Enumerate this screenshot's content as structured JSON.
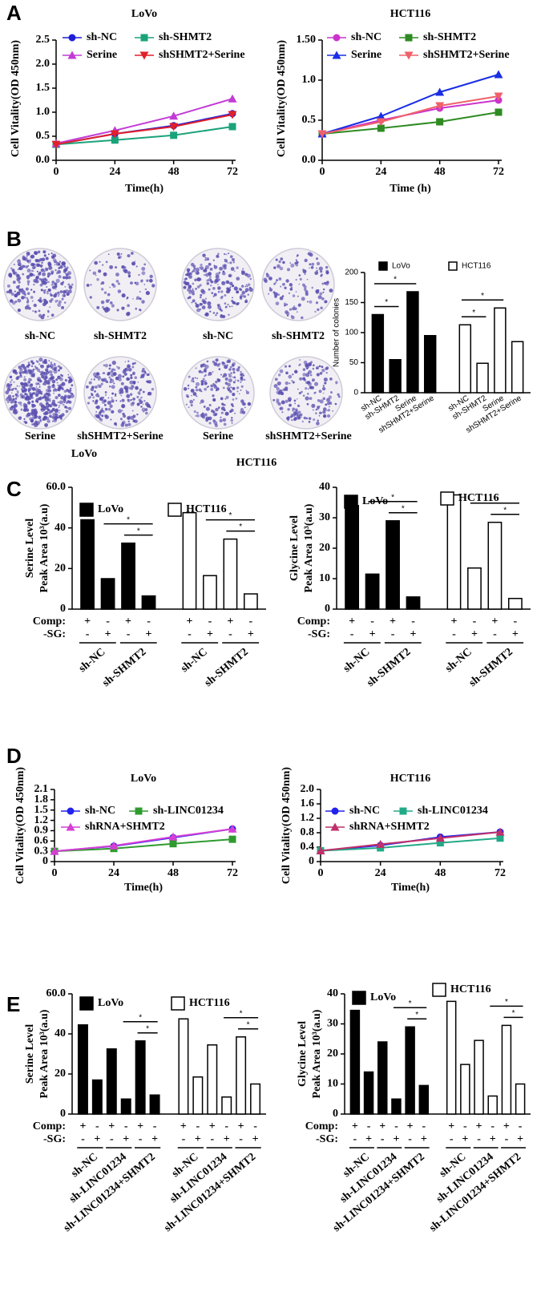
{
  "figure": {
    "panels": [
      "A",
      "B",
      "C",
      "D",
      "E"
    ]
  },
  "colony_panels": [
    {
      "group": "LoVo",
      "labels": [
        "sh-NC",
        "sh-SHMT2",
        "Serine",
        "shSHMT2+Serine"
      ]
    },
    {
      "group": "HCT116",
      "labels": [
        "sh-NC",
        "sh-SHMT2",
        "Serine",
        "shSHMT2+Serine"
      ]
    }
  ],
  "chart_data": [
    {
      "type": "line",
      "title": "LoVo",
      "xlabel": "Time(h)",
      "ylabel": "Cell Vitality(OD 450nm)",
      "x": [
        0,
        24,
        48,
        72
      ],
      "xlim": [
        0,
        72
      ],
      "xticks": [
        0,
        24,
        48,
        72
      ],
      "ylim": [
        0,
        2.5
      ],
      "yticks": [
        {
          "value": 0,
          "label": "0.0"
        },
        0.5,
        {
          "value": 1,
          "label": "1.0"
        },
        1.5,
        {
          "value": 2,
          "label": "2.0"
        },
        2.5
      ],
      "series": [
        {
          "name": "sh-NC",
          "color": "#1f1fd6",
          "marker": "circle",
          "values": [
            0.33,
            0.55,
            0.72,
            0.97
          ]
        },
        {
          "name": "sh-SHMT2",
          "color": "#1aa37a",
          "marker": "square",
          "values": [
            0.33,
            0.42,
            0.52,
            0.7
          ]
        },
        {
          "name": "Serine",
          "color": "#c23bd6",
          "marker": "triangle",
          "values": [
            0.35,
            0.62,
            0.92,
            1.28
          ]
        },
        {
          "name": "shSHMT2+Serine",
          "color": "#e0202a",
          "marker": "triangle-down",
          "values": [
            0.33,
            0.55,
            0.7,
            0.95
          ]
        }
      ]
    },
    {
      "type": "line",
      "title": "HCT116",
      "xlabel": "Time (h)",
      "ylabel": "Cell Vitality(OD 450nm)",
      "x": [
        0,
        24,
        48,
        72
      ],
      "xlim": [
        0,
        72
      ],
      "xticks": [
        0,
        24,
        48,
        72
      ],
      "ylim": [
        0,
        1.5
      ],
      "yticks": [
        {
          "value": 0,
          "label": "0.0"
        },
        0.5,
        {
          "value": 1,
          "label": "1.0"
        },
        {
          "value": 1.5,
          "label": "1.50"
        }
      ],
      "series": [
        {
          "name": "sh-NC",
          "color": "#cc33cc",
          "marker": "circle",
          "values": [
            0.33,
            0.5,
            0.65,
            0.75
          ]
        },
        {
          "name": "sh-SHMT2",
          "color": "#2e8b22",
          "marker": "square",
          "values": [
            0.33,
            0.4,
            0.48,
            0.6
          ]
        },
        {
          "name": "Serine",
          "color": "#1a2ee6",
          "marker": "triangle",
          "values": [
            0.33,
            0.55,
            0.85,
            1.07
          ]
        },
        {
          "name": "shSHMT2+Serine",
          "color": "#f0606a",
          "marker": "triangle-down",
          "values": [
            0.33,
            0.48,
            0.68,
            0.8
          ]
        }
      ]
    },
    {
      "type": "bar",
      "ylabel": "Number of colonies",
      "ylim": [
        0,
        200
      ],
      "yticks": [
        0,
        50,
        100,
        150,
        200
      ],
      "categories": [
        "sh-NC",
        "sh-SHMT2",
        "Serine",
        "shSHMT2+Serine",
        "sh-NC",
        "sh-SHMT2",
        "Serine",
        "shSHMT2+Serine"
      ],
      "series": [
        {
          "name": "LoVo",
          "color": "#000000",
          "values": [
            130,
            55,
            168,
            95,
            null,
            null,
            null,
            null
          ]
        },
        {
          "name": "HCT116",
          "color": "#ffffff",
          "values": [
            null,
            null,
            null,
            null,
            113,
            49,
            141,
            85
          ]
        }
      ],
      "significance": [
        {
          "bars": [
            0,
            1
          ],
          "label": "*"
        },
        {
          "bars": [
            0,
            2
          ],
          "label": "*"
        },
        {
          "bars": [
            4,
            5
          ],
          "label": "*"
        },
        {
          "bars": [
            4,
            6
          ],
          "label": "*"
        }
      ]
    },
    {
      "type": "bar",
      "ylabel": [
        "Serine Level",
        "Peak Area 10³(a.u)"
      ],
      "ylim": [
        0,
        60
      ],
      "yticks": [
        0,
        20,
        40,
        {
          "value": 60,
          "label": "60.0"
        }
      ],
      "rows": [
        {
          "label": "Comp:",
          "values": [
            "+",
            "-",
            "+",
            "-",
            "+",
            "-",
            "+",
            "-"
          ]
        },
        {
          "label": "-SG:",
          "values": [
            "-",
            "+",
            "-",
            "+",
            "-",
            "+",
            "-",
            "+"
          ]
        }
      ],
      "groups": [
        "sh-NC",
        "sh-SHMT2",
        "sh-NC",
        "sh-SHMT2"
      ],
      "series": [
        {
          "name": "LoVo",
          "color": "#000000",
          "values": [
            44,
            15,
            32.5,
            6.5,
            null,
            null,
            null,
            null
          ]
        },
        {
          "name": "HCT116",
          "color": "#ffffff",
          "values": [
            null,
            null,
            null,
            null,
            47.5,
            16.5,
            34.5,
            7.5
          ]
        }
      ],
      "significance": [
        {
          "bars": [
            2,
            3
          ],
          "label": "*"
        },
        {
          "bars": [
            1,
            3
          ],
          "label": "*"
        },
        {
          "bars": [
            6,
            7
          ],
          "label": "*"
        },
        {
          "bars": [
            5,
            7
          ],
          "label": "*"
        }
      ]
    },
    {
      "type": "bar",
      "ylabel": [
        "Glycine Level",
        "Peak Area 10³(a.u)"
      ],
      "ylim": [
        0,
        40
      ],
      "yticks": [
        0,
        10,
        20,
        30,
        40
      ],
      "rows": [
        {
          "label": "Comp:",
          "values": [
            "+",
            "-",
            "+",
            "-",
            "+",
            "-",
            "+",
            "-"
          ]
        },
        {
          "label": "-SG:",
          "values": [
            "-",
            "+",
            "-",
            "+",
            "-",
            "+",
            "-",
            "+"
          ]
        }
      ],
      "groups": [
        "sh-NC",
        "sh-SHMT2",
        "sh-NC",
        "sh-SHMT2"
      ],
      "series": [
        {
          "name": "LoVo",
          "color": "#000000",
          "values": [
            34,
            11.5,
            29,
            4,
            null,
            null,
            null,
            null
          ]
        },
        {
          "name": "HCT116",
          "color": "#ffffff",
          "values": [
            null,
            null,
            null,
            null,
            37.5,
            13.5,
            28.5,
            3.5
          ]
        }
      ],
      "significance": [
        {
          "bars": [
            2,
            3
          ],
          "label": "*"
        },
        {
          "bars": [
            1,
            3
          ],
          "label": "*"
        },
        {
          "bars": [
            6,
            7
          ],
          "label": "*"
        },
        {
          "bars": [
            5,
            7
          ],
          "label": "*"
        }
      ]
    },
    {
      "type": "line",
      "title": "LoVo",
      "xlabel": "Time(h)",
      "ylabel": "Cell Vitality(OD 450nm)",
      "x": [
        0,
        24,
        48,
        72
      ],
      "xlim": [
        0,
        72
      ],
      "xticks": [
        0,
        24,
        48,
        72
      ],
      "ylim": [
        0,
        2.1
      ],
      "yticks": [
        0,
        0.3,
        0.6,
        0.9,
        1.2,
        1.5,
        1.8,
        2.1
      ],
      "series": [
        {
          "name": "sh-NC",
          "color": "#2222ee",
          "marker": "circle",
          "values": [
            0.3,
            0.45,
            0.7,
            0.95
          ]
        },
        {
          "name": "sh-LINC01234",
          "color": "#2f9b2f",
          "marker": "square",
          "values": [
            0.3,
            0.38,
            0.52,
            0.65
          ]
        },
        {
          "name": "shRNA+SHMT2",
          "color": "#d63fd6",
          "marker": "triangle",
          "values": [
            0.3,
            0.46,
            0.72,
            0.95
          ]
        }
      ]
    },
    {
      "type": "line",
      "title": "HCT116",
      "xlabel": "Time(h)",
      "ylabel": "Cell Vitality(OD 450nm)",
      "x": [
        0,
        24,
        48,
        72
      ],
      "xlim": [
        0,
        72
      ],
      "xticks": [
        0,
        24,
        48,
        72
      ],
      "ylim": [
        0,
        2
      ],
      "yticks": [
        0,
        0.4,
        0.8,
        1.2,
        1.6,
        {
          "value": 2,
          "label": "2.0"
        }
      ],
      "series": [
        {
          "name": "sh-NC",
          "color": "#2222ee",
          "marker": "circle",
          "values": [
            0.3,
            0.45,
            0.68,
            0.82
          ]
        },
        {
          "name": "sh-LINC01234",
          "color": "#22aa88",
          "marker": "square",
          "values": [
            0.3,
            0.38,
            0.52,
            0.65
          ]
        },
        {
          "name": "shRNA+SHMT2",
          "color": "#c0306a",
          "marker": "triangle",
          "values": [
            0.3,
            0.48,
            0.65,
            0.82
          ]
        }
      ]
    },
    {
      "type": "bar",
      "ylabel": [
        "Serine Level",
        "Peak Area 10³(a.u)"
      ],
      "ylim": [
        0,
        60
      ],
      "yticks": [
        0,
        20,
        40,
        {
          "value": 60,
          "label": "60.0"
        }
      ],
      "rows": [
        {
          "label": "Comp:",
          "values": [
            "+",
            "-",
            "+",
            "-",
            "+",
            "-",
            "+",
            "-",
            "+",
            "-",
            "+",
            "-"
          ]
        },
        {
          "label": "-SG:",
          "values": [
            "-",
            "+",
            "-",
            "+",
            "-",
            "+",
            "-",
            "+",
            "-",
            "+",
            "-",
            "+"
          ]
        }
      ],
      "groups": [
        "sh-NC",
        "sh-LINC01234",
        "sh-LINC01234+SHMT2",
        "sh-NC",
        "sh-LINC01234",
        "sh-LINC01234+SHMT2"
      ],
      "series": [
        {
          "name": "LoVo",
          "color": "#000000",
          "values": [
            44.5,
            17,
            32.5,
            7.5,
            36.5,
            9.5,
            null,
            null,
            null,
            null,
            null,
            null
          ]
        },
        {
          "name": "HCT116",
          "color": "#ffffff",
          "values": [
            null,
            null,
            null,
            null,
            null,
            null,
            47.5,
            18.5,
            34.5,
            8.5,
            38.5,
            15
          ]
        }
      ],
      "significance": [
        {
          "bars": [
            4,
            5
          ],
          "label": "*"
        },
        {
          "bars": [
            3,
            5
          ],
          "label": "*"
        },
        {
          "bars": [
            10,
            11
          ],
          "label": "*"
        },
        {
          "bars": [
            9,
            11
          ],
          "label": "*"
        }
      ]
    },
    {
      "type": "bar",
      "ylabel": [
        "Glycine Level",
        "Peak Area 10³(a.u)"
      ],
      "ylim": [
        0,
        40
      ],
      "yticks": [
        0,
        10,
        20,
        30,
        40
      ],
      "rows": [
        {
          "label": "Comp:",
          "values": [
            "+",
            "-",
            "+",
            "-",
            "+",
            "-",
            "+",
            "-",
            "+",
            "-",
            "+",
            "-"
          ]
        },
        {
          "label": "-SG:",
          "values": [
            "-",
            "+",
            "-",
            "+",
            "-",
            "+",
            "-",
            "+",
            "-",
            "+",
            "-",
            "+"
          ]
        }
      ],
      "groups": [
        "sh-NC",
        "sh-LINC01234",
        "sh-LINC01234+SHMT2",
        "sh-NC",
        "sh-LINC01234",
        "sh-LINC01234+SHMT2"
      ],
      "series": [
        {
          "name": "LoVo",
          "color": "#000000",
          "values": [
            34.5,
            14,
            24,
            5,
            29,
            9.5,
            null,
            null,
            null,
            null,
            null,
            null
          ]
        },
        {
          "name": "HCT116",
          "color": "#ffffff",
          "values": [
            null,
            null,
            null,
            null,
            null,
            null,
            37.5,
            16.5,
            24.5,
            6,
            29.5,
            10
          ]
        }
      ],
      "significance": [
        {
          "bars": [
            4,
            5
          ],
          "label": "*"
        },
        {
          "bars": [
            3,
            5
          ],
          "label": "*"
        },
        {
          "bars": [
            10,
            11
          ],
          "label": "*"
        },
        {
          "bars": [
            9,
            11
          ],
          "label": "*"
        }
      ]
    }
  ]
}
